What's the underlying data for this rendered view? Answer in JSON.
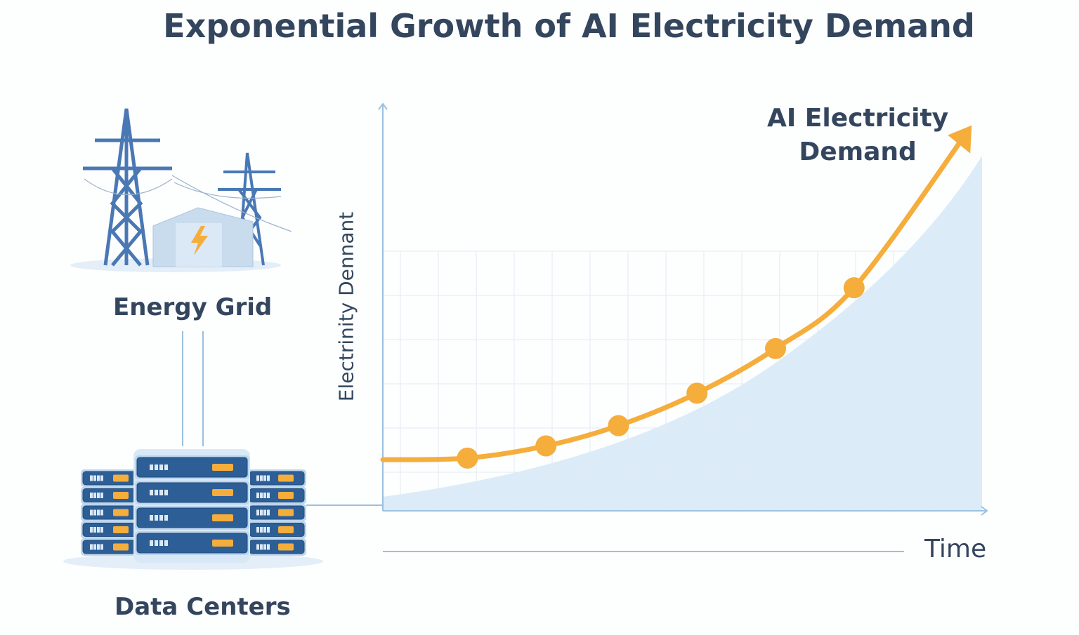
{
  "title": "Exponential Growth of AI Electricity Demand",
  "labels": {
    "energy_grid": "Energy Grid",
    "data_centers": "Data Centers"
  },
  "colors": {
    "curve": "#f5ad3c",
    "axis": "#9cc0e0",
    "area": "#d6e7f7",
    "text": "#34465e",
    "server": "#2d5f96"
  },
  "icons": {
    "grid": "power-pylon-icon",
    "substation": "lightning-building-icon",
    "servers": "server-rack-icon"
  },
  "chart_data": {
    "type": "line",
    "title": "",
    "xlabel": "Time",
    "ylabel": "Electrinity Dennant",
    "series_label_line1": "AI Electricity",
    "series_label_line2": "Demand",
    "xlim": [
      0,
      100
    ],
    "ylim": [
      0,
      100
    ],
    "grid": true,
    "curve_start": [
      0,
      12.6
    ],
    "curve_end": [
      97,
      94
    ],
    "points": [
      {
        "x": 14,
        "y": 13
      },
      {
        "x": 27,
        "y": 16
      },
      {
        "x": 39,
        "y": 21
      },
      {
        "x": 52,
        "y": 29
      },
      {
        "x": 65,
        "y": 40
      },
      {
        "x": 78,
        "y": 55
      }
    ]
  }
}
